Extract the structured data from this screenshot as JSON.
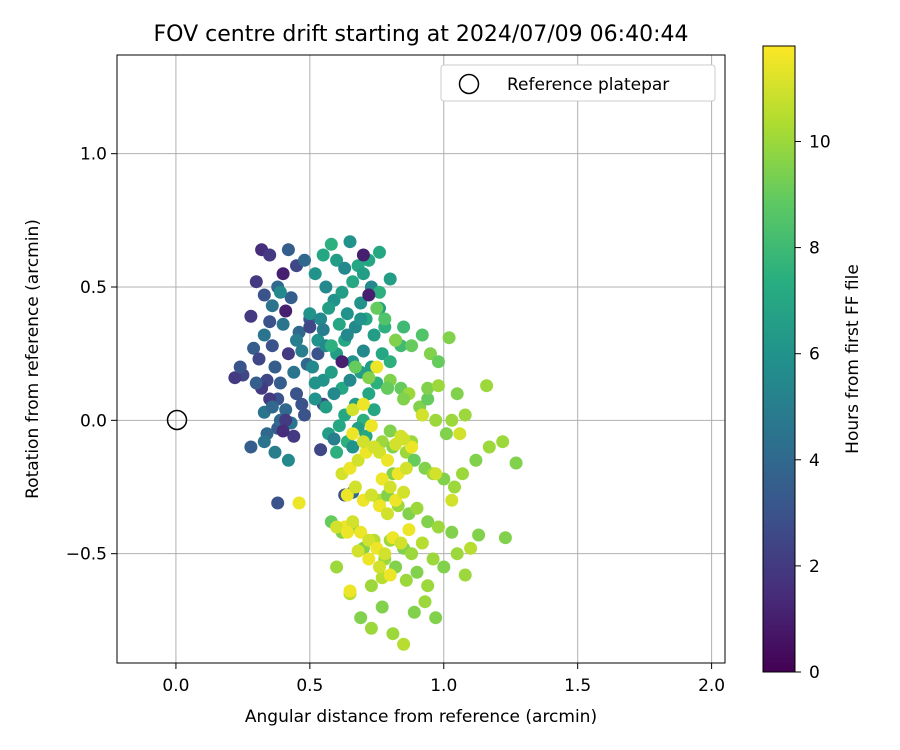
{
  "chart_data": {
    "type": "scatter",
    "title": "FOV centre drift starting at 2024/07/09 06:40:44",
    "xlabel": "Angular distance from reference (arcmin)",
    "ylabel": "Rotation from reference (arcmin)",
    "xlim": [
      -0.22,
      2.05
    ],
    "ylim": [
      -0.91,
      1.37
    ],
    "xticks": [
      "0.0",
      "0.5",
      "1.0",
      "1.5",
      "2.0"
    ],
    "xtick_values": [
      0.0,
      0.5,
      1.0,
      1.5,
      2.0
    ],
    "yticks": [
      "1.0",
      "0.5",
      "0.0",
      "−0.5"
    ],
    "ytick_values": [
      1.0,
      0.5,
      0.0,
      -0.5
    ],
    "grid": true,
    "legend": {
      "placement": "top-right",
      "entries": [
        "Reference platepar"
      ]
    },
    "reference_point": {
      "x": 0.0,
      "y": 0.0
    },
    "colorbar": {
      "label": "Hours from first FF file",
      "min": 0,
      "max": 11.8,
      "ticks": [
        "0",
        "2",
        "4",
        "6",
        "8",
        "10"
      ],
      "tick_values": [
        0,
        2,
        4,
        6,
        8,
        10
      ],
      "colormap": "viridis"
    },
    "series": [
      {
        "x": [
          0.32,
          0.35,
          0.4,
          0.42,
          0.45,
          0.48,
          0.3,
          0.33,
          0.38,
          0.43,
          0.36,
          0.41,
          0.28,
          0.35,
          0.4,
          0.46,
          0.5,
          0.33,
          0.29,
          0.36,
          0.42,
          0.31,
          0.37,
          0.44,
          0.49,
          0.34,
          0.39,
          0.45,
          0.32,
          0.38,
          0.25,
          0.22,
          0.24,
          0.3,
          0.35,
          0.41,
          0.47,
          0.33,
          0.38,
          0.44,
          0.34,
          0.28,
          0.39,
          0.43,
          0.48,
          0.37,
          0.33,
          0.42,
          0.38,
          0.5,
          0.45,
          0.36,
          0.41,
          0.4,
          0.55,
          0.47,
          0.39,
          0.53
        ],
        "y": [
          0.64,
          0.62,
          0.55,
          0.64,
          0.58,
          0.6,
          0.52,
          0.47,
          0.5,
          0.46,
          0.43,
          0.41,
          0.39,
          0.37,
          0.36,
          0.33,
          0.38,
          0.32,
          0.27,
          0.28,
          0.25,
          0.23,
          0.2,
          0.18,
          0.21,
          0.15,
          0.14,
          0.1,
          0.12,
          0.08,
          0.17,
          0.16,
          0.2,
          0.14,
          0.08,
          0.04,
          0.06,
          0.03,
          -0.03,
          -0.06,
          -0.05,
          -0.1,
          0.0,
          -0.01,
          0.02,
          -0.12,
          -0.08,
          -0.15,
          -0.31,
          0.35,
          0.3,
          0.05,
          0.0,
          -0.04,
          0.06,
          0.26,
          0.48,
          0.25
        ],
        "hours": [
          1.5,
          2.0,
          1.0,
          3.5,
          2.5,
          4.0,
          2.0,
          3.0,
          4.0,
          3.5,
          4.5,
          1.0,
          2.0,
          3.0,
          4.5,
          4.0,
          3.0,
          4.5,
          3.5,
          3.0,
          2.0,
          2.5,
          3.5,
          4.5,
          4.0,
          2.5,
          3.5,
          3.0,
          2.0,
          3.0,
          2.5,
          2.0,
          3.0,
          3.5,
          2.0,
          4.0,
          3.0,
          4.5,
          3.5,
          2.0,
          4.0,
          3.5,
          4.0,
          4.5,
          3.0,
          5.0,
          4.5,
          5.5,
          3.0,
          2.5,
          5.0,
          4.0,
          2.0,
          1.5,
          2.5,
          5.0,
          5.5,
          3.0
        ]
      },
      {
        "x": [
          0.52,
          0.55,
          0.58,
          0.6,
          0.63,
          0.65,
          0.68,
          0.7,
          0.72,
          0.56,
          0.59,
          0.62,
          0.66,
          0.69,
          0.73,
          0.76,
          0.5,
          0.54,
          0.57,
          0.61,
          0.64,
          0.67,
          0.71,
          0.74,
          0.78,
          0.82,
          0.53,
          0.56,
          0.6,
          0.63,
          0.66,
          0.7,
          0.73,
          0.77,
          0.8,
          0.84,
          0.51,
          0.55,
          0.58,
          0.62,
          0.65,
          0.69,
          0.72,
          0.75,
          0.79,
          0.52,
          0.56,
          0.59,
          0.63,
          0.67,
          0.7,
          0.74,
          0.57,
          0.61,
          0.64,
          0.68,
          0.71,
          0.6,
          0.66,
          0.62,
          0.7,
          0.76,
          0.72,
          0.8,
          0.54,
          0.66,
          0.69,
          0.76,
          0.55,
          0.64,
          0.59,
          0.52,
          0.58,
          0.63
        ],
        "y": [
          0.55,
          0.62,
          0.66,
          0.6,
          0.57,
          0.67,
          0.58,
          0.55,
          0.6,
          0.5,
          0.45,
          0.48,
          0.52,
          0.44,
          0.5,
          0.48,
          0.4,
          0.38,
          0.42,
          0.36,
          0.4,
          0.35,
          0.38,
          0.32,
          0.35,
          0.3,
          0.3,
          0.28,
          0.25,
          0.3,
          0.22,
          0.26,
          0.2,
          0.25,
          0.22,
          0.28,
          0.2,
          0.15,
          0.18,
          0.12,
          0.15,
          0.18,
          0.1,
          0.14,
          0.12,
          0.08,
          0.05,
          0.1,
          0.02,
          0.06,
          0.0,
          0.04,
          -0.05,
          -0.02,
          -0.08,
          -0.03,
          -0.06,
          -0.12,
          -0.1,
          0.22,
          0.62,
          0.63,
          0.47,
          0.53,
          -0.11,
          -0.27,
          0.38,
          0.42,
          0.34,
          0.32,
          -0.07,
          0.14,
          0.28,
          -0.28
        ],
        "hours": [
          6.0,
          7.0,
          7.5,
          6.5,
          5.5,
          6.0,
          7.0,
          6.5,
          7.0,
          5.5,
          6.0,
          6.5,
          7.0,
          6.0,
          5.5,
          7.5,
          6.0,
          5.5,
          6.5,
          7.0,
          6.0,
          5.5,
          7.0,
          6.5,
          7.5,
          8.0,
          6.0,
          5.5,
          6.5,
          7.0,
          6.0,
          5.5,
          6.5,
          7.0,
          7.5,
          8.0,
          5.5,
          6.0,
          6.5,
          7.0,
          5.5,
          6.5,
          7.0,
          7.5,
          8.0,
          6.0,
          6.5,
          5.5,
          7.0,
          6.5,
          7.5,
          7.0,
          6.5,
          7.0,
          7.5,
          6.5,
          7.0,
          7.5,
          6.0,
          1.0,
          1.0,
          7.0,
          1.0,
          6.5,
          2.5,
          4.0,
          6.0,
          6.5,
          5.0,
          5.5,
          5.0,
          6.0,
          7.5,
          3.0
        ]
      },
      {
        "x": [
          0.75,
          0.78,
          0.82,
          0.85,
          0.88,
          0.92,
          0.95,
          0.98,
          1.02,
          0.8,
          0.84,
          0.87,
          0.91,
          0.94,
          0.97,
          1.01,
          1.05,
          0.77,
          0.81,
          0.86,
          0.89,
          0.93,
          0.96,
          1.0,
          1.04,
          0.76,
          0.79,
          0.83,
          0.87,
          0.9,
          0.94,
          0.98,
          1.03,
          0.8,
          0.85,
          0.88,
          0.92,
          0.96,
          1.0,
          1.05,
          1.1,
          0.58,
          0.62,
          0.66,
          0.7,
          0.74,
          0.78,
          0.82,
          0.86,
          0.9,
          0.94,
          0.6,
          0.65,
          0.69,
          0.73,
          0.77,
          0.81,
          0.85,
          0.89,
          0.93,
          0.97,
          1.07,
          1.12,
          1.17,
          1.22,
          1.27,
          1.08,
          1.13,
          0.73,
          0.77,
          0.81,
          0.67,
          0.72,
          0.79,
          0.85,
          0.92,
          0.8,
          0.88,
          0.94,
          0.98,
          1.03,
          1.08,
          1.16,
          1.23
        ],
        "y": [
          0.42,
          0.38,
          0.3,
          0.35,
          0.28,
          0.32,
          0.25,
          0.22,
          0.31,
          0.15,
          0.12,
          0.1,
          0.05,
          0.08,
          0.0,
          -0.05,
          0.1,
          -0.08,
          -0.1,
          -0.12,
          -0.15,
          -0.18,
          -0.2,
          -0.22,
          -0.25,
          -0.3,
          -0.28,
          -0.32,
          -0.35,
          -0.33,
          -0.38,
          -0.4,
          -0.42,
          -0.45,
          -0.48,
          -0.5,
          -0.46,
          -0.52,
          -0.55,
          -0.5,
          -0.48,
          -0.38,
          -0.42,
          -0.4,
          -0.48,
          -0.45,
          -0.52,
          -0.55,
          -0.6,
          -0.57,
          -0.62,
          -0.55,
          -0.65,
          -0.74,
          -0.78,
          -0.7,
          -0.8,
          -0.84,
          -0.72,
          -0.68,
          -0.74,
          -0.2,
          -0.15,
          -0.1,
          -0.08,
          -0.16,
          -0.58,
          -0.43,
          -0.62,
          -0.59,
          -0.2,
          0.2,
          0.16,
          0.12,
          0.08,
          0.02,
          -0.04,
          -0.08,
          0.12,
          0.13,
          0.0,
          0.02,
          0.13,
          -0.44
        ],
        "hours": [
          9.0,
          8.5,
          9.5,
          8.0,
          9.0,
          8.5,
          9.5,
          9.0,
          9.5,
          9.5,
          9.0,
          10.0,
          9.5,
          9.0,
          10.0,
          9.5,
          9.5,
          10.0,
          9.5,
          10.0,
          9.0,
          9.5,
          10.0,
          9.5,
          10.0,
          10.5,
          9.5,
          10.0,
          9.5,
          10.0,
          9.5,
          10.0,
          9.5,
          10.0,
          9.5,
          10.0,
          10.5,
          10.0,
          9.5,
          10.0,
          10.5,
          9.0,
          9.5,
          10.0,
          9.5,
          10.5,
          10.0,
          9.5,
          10.0,
          9.5,
          10.0,
          10.0,
          10.5,
          9.5,
          10.0,
          9.5,
          10.0,
          10.5,
          9.5,
          10.0,
          9.5,
          10.0,
          9.5,
          10.0,
          10.0,
          9.5,
          10.0,
          9.5,
          10.0,
          10.5,
          9.5,
          9.0,
          9.5,
          9.0,
          9.5,
          10.0,
          9.5,
          10.0,
          9.5,
          10.0,
          10.0,
          10.0,
          10.0,
          9.5
        ]
      },
      {
        "x": [
          0.62,
          0.65,
          0.68,
          0.71,
          0.74,
          0.77,
          0.8,
          0.83,
          0.86,
          0.66,
          0.7,
          0.73,
          0.76,
          0.79,
          0.82,
          0.64,
          0.67,
          0.7,
          0.73,
          0.76,
          0.79,
          0.82,
          0.85,
          0.63,
          0.66,
          0.69,
          0.72,
          0.75,
          0.78,
          0.81,
          0.84,
          0.87,
          0.6,
          0.64,
          0.68,
          0.72,
          0.76,
          0.8,
          0.84,
          0.88,
          0.66,
          0.7,
          0.75,
          0.46,
          0.65,
          0.92,
          0.97,
          1.03,
          1.06,
          0.85
        ],
        "y": [
          -0.2,
          -0.18,
          -0.15,
          -0.12,
          -0.1,
          -0.22,
          -0.25,
          -0.2,
          -0.18,
          -0.05,
          -0.08,
          -0.02,
          -0.12,
          -0.15,
          -0.09,
          -0.28,
          -0.25,
          -0.3,
          -0.28,
          -0.32,
          -0.35,
          -0.3,
          -0.27,
          -0.4,
          -0.38,
          -0.42,
          -0.45,
          -0.48,
          -0.5,
          -0.44,
          -0.46,
          -0.41,
          -0.4,
          -0.42,
          -0.49,
          -0.52,
          -0.55,
          -0.58,
          -0.06,
          -0.1,
          0.04,
          0.06,
          0.2,
          -0.31,
          -0.64,
          0.02,
          -0.2,
          -0.3,
          -0.05,
          -0.07
        ],
        "hours": [
          11.0,
          11.5,
          11.0,
          11.5,
          11.0,
          11.5,
          11.0,
          11.5,
          11.0,
          11.5,
          11.0,
          11.5,
          11.0,
          11.5,
          11.0,
          11.5,
          11.0,
          11.5,
          11.0,
          11.5,
          11.0,
          11.5,
          11.0,
          11.5,
          11.0,
          11.5,
          11.0,
          11.5,
          11.0,
          11.5,
          11.0,
          11.5,
          11.0,
          11.5,
          11.0,
          11.5,
          11.0,
          11.5,
          11.0,
          11.5,
          11.0,
          11.5,
          11.5,
          11.5,
          11.5,
          11.0,
          11.0,
          11.0,
          11.0,
          11.0
        ]
      }
    ]
  }
}
